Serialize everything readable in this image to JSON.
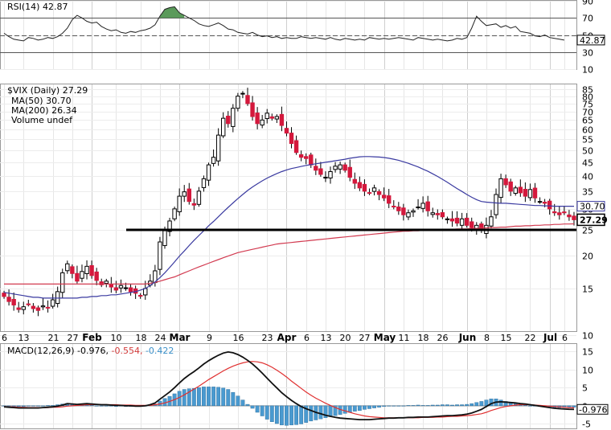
{
  "chart_data": [
    {
      "type": "line",
      "title": "RSI(14) 42.87",
      "ylim": [
        10,
        90
      ],
      "ticks": [
        "90",
        "70",
        "50",
        "30",
        "10"
      ],
      "guides": [
        30,
        50,
        70
      ],
      "last_value_label": "42.87",
      "series": [
        {
          "name": "RSI(14)",
          "values": [
            52,
            48,
            45,
            44,
            43,
            47,
            46,
            44,
            45,
            47,
            46,
            48,
            52,
            58,
            68,
            73,
            70,
            66,
            64,
            65,
            60,
            57,
            55,
            56,
            53,
            52,
            54,
            53,
            55,
            56,
            58,
            62,
            72,
            80,
            82,
            83,
            76,
            73,
            70,
            67,
            63,
            61,
            60,
            62,
            64,
            61,
            57,
            56,
            53,
            52,
            51,
            53,
            50,
            48,
            49,
            47,
            48,
            46,
            47,
            46,
            46,
            48,
            47,
            46,
            47,
            46,
            45,
            47,
            45,
            44,
            46,
            45,
            44,
            45,
            44,
            47,
            46,
            45,
            46,
            45,
            46,
            47,
            46,
            45,
            44,
            47,
            46,
            45,
            44,
            45,
            44,
            43,
            44,
            46,
            45,
            47,
            58,
            72,
            66,
            61,
            62,
            63,
            59,
            61,
            58,
            60,
            54,
            53,
            52,
            49,
            48,
            50,
            47,
            46,
            45,
            44
          ]
        }
      ]
    },
    {
      "type": "candlestick",
      "title": "$VIX (Daily) 27.29",
      "scale": "log",
      "ylim": [
        10.5,
        88
      ],
      "ticks": [
        "85",
        "80",
        "75",
        "70",
        "65",
        "60",
        "55",
        "50",
        "45",
        "40",
        "35",
        "30",
        "25",
        "20",
        "15",
        "10"
      ],
      "x_ticks": [
        "6",
        "13",
        "21",
        "27",
        "Feb",
        "10",
        "18",
        "24",
        "Mar",
        "9",
        "16",
        "23",
        "Apr",
        "6",
        "13",
        "20",
        "27",
        "May",
        "11",
        "18",
        "26",
        "Jun",
        "8",
        "15",
        "22",
        "Jul",
        "6"
      ],
      "legend": [
        {
          "label": "$VIX (Daily) 27.29",
          "color": "#000000"
        },
        {
          "label": "MA(50) 30.70",
          "color": "#3a3aa0"
        },
        {
          "label": "MA(200) 26.34",
          "color": "#d23a50"
        },
        {
          "label": "Volume undef",
          "color": "#777777"
        }
      ],
      "last_value_label": "27.29",
      "ma50_label": "30.70",
      "support_level": 25,
      "close": [
        14.0,
        13.4,
        13.0,
        12.5,
        12.8,
        13.1,
        12.6,
        12.4,
        12.9,
        12.7,
        13.6,
        14.6,
        17.2,
        18.6,
        17.1,
        16.0,
        17.4,
        18.2,
        16.8,
        16.1,
        15.5,
        16.0,
        15.2,
        14.8,
        15.4,
        15.1,
        14.6,
        14.4,
        14.1,
        15.0,
        16.0,
        17.5,
        22.5,
        24.8,
        27.0,
        30.0,
        33.5,
        34.8,
        32.0,
        31.0,
        35.0,
        39.0,
        44.0,
        47.0,
        57.0,
        66.0,
        63.0,
        72.0,
        80.0,
        82.0,
        75.0,
        67.0,
        63.0,
        65.0,
        69.0,
        66.0,
        67.0,
        62.0,
        58.0,
        53.0,
        49.0,
        47.0,
        46.5,
        44.0,
        42.0,
        40.5,
        39.5,
        41.5,
        43.5,
        44.0,
        42.0,
        39.5,
        37.5,
        36.0,
        35.0,
        34.5,
        36.0,
        34.0,
        33.0,
        31.5,
        30.5,
        29.5,
        28.5,
        29.0,
        29.5,
        30.5,
        31.5,
        29.5,
        29.0,
        28.5,
        28.0,
        27.5,
        27.0,
        26.5,
        27.5,
        26.0,
        25.5,
        26.0,
        25.0,
        26.0,
        28.0,
        34.0,
        39.0,
        37.0,
        35.0,
        36.0,
        34.5,
        33.5,
        35.5,
        33.0,
        32.0,
        31.5,
        30.0,
        29.0,
        28.5,
        29.0,
        28.0,
        27.29
      ],
      "ma50": [
        14.5,
        14.4,
        14.3,
        14.2,
        14.1,
        14.0,
        13.9,
        13.9,
        13.8,
        13.8,
        13.8,
        13.8,
        13.8,
        13.8,
        13.8,
        13.8,
        13.9,
        13.9,
        14.0,
        14.0,
        14.1,
        14.1,
        14.2,
        14.2,
        14.3,
        14.4,
        14.5,
        14.6,
        14.8,
        15.0,
        15.4,
        15.9,
        16.5,
        17.2,
        18.0,
        18.9,
        19.9,
        20.8,
        21.8,
        22.8,
        23.8,
        24.8,
        25.9,
        26.9,
        28.0,
        29.2,
        30.4,
        31.6,
        32.8,
        34.0,
        35.2,
        36.3,
        37.3,
        38.3,
        39.2,
        40.0,
        40.8,
        41.5,
        42.1,
        42.6,
        43.0,
        43.4,
        43.8,
        44.1,
        44.4,
        44.7,
        45.0,
        45.3,
        45.6,
        45.9,
        46.2,
        46.6,
        46.9,
        47.2,
        47.3,
        47.3,
        47.2,
        47.1,
        46.9,
        46.6,
        46.2,
        45.8,
        45.2,
        44.6,
        43.9,
        43.2,
        42.4,
        41.6,
        40.7,
        39.8,
        38.8,
        37.8,
        36.8,
        35.8,
        34.9,
        34.0,
        33.2,
        32.5,
        32.0,
        31.8,
        31.7,
        31.6,
        31.5,
        31.5,
        31.4,
        31.3,
        31.2,
        31.1,
        31.0,
        30.9,
        30.9,
        30.8,
        30.8,
        30.7,
        30.7,
        30.7,
        30.7,
        30.7
      ],
      "ma200": [
        15.6,
        15.6,
        15.6,
        15.6,
        15.6,
        15.6,
        15.6,
        15.6,
        15.6,
        15.6,
        15.6,
        15.6,
        15.6,
        15.6,
        15.6,
        15.6,
        15.6,
        15.6,
        15.6,
        15.6,
        15.6,
        15.6,
        15.6,
        15.6,
        15.6,
        15.6,
        15.6,
        15.6,
        15.6,
        15.6,
        15.7,
        15.8,
        16.0,
        16.2,
        16.4,
        16.6,
        16.9,
        17.2,
        17.5,
        17.8,
        18.1,
        18.4,
        18.7,
        19.0,
        19.3,
        19.6,
        19.9,
        20.2,
        20.5,
        20.7,
        20.9,
        21.1,
        21.3,
        21.5,
        21.7,
        21.9,
        22.1,
        22.2,
        22.3,
        22.4,
        22.5,
        22.6,
        22.7,
        22.8,
        22.9,
        23.0,
        23.1,
        23.2,
        23.3,
        23.4,
        23.5,
        23.6,
        23.7,
        23.8,
        23.9,
        24.0,
        24.1,
        24.2,
        24.3,
        24.4,
        24.5,
        24.6,
        24.7,
        24.7,
        24.8,
        24.8,
        24.9,
        24.9,
        25.0,
        25.0,
        25.1,
        25.1,
        25.1,
        25.2,
        25.2,
        25.2,
        25.3,
        25.3,
        25.4,
        25.4,
        25.5,
        25.5,
        25.6,
        25.6,
        25.7,
        25.8,
        25.8,
        25.9,
        25.9,
        26.0,
        26.0,
        26.1,
        26.1,
        26.2,
        26.2,
        26.3,
        26.3,
        26.34
      ]
    },
    {
      "type": "line+bar",
      "title": "MACD(12,26,9)",
      "legend": [
        {
          "label": "MACD(12,26,9) -0.976, ",
          "color": "#000000"
        },
        {
          "label": "-0.554, ",
          "color": "#d23a3a"
        },
        {
          "label": "-0.422",
          "color": "#3a8fc8"
        }
      ],
      "ylim": [
        -6,
        17
      ],
      "ticks": [
        "15",
        "10",
        "5",
        "0",
        "-5"
      ],
      "last_value_label": "-0.976",
      "series": [
        {
          "name": "MACD",
          "values": [
            -0.3,
            -0.4,
            -0.5,
            -0.6,
            -0.6,
            -0.6,
            -0.6,
            -0.6,
            -0.5,
            -0.4,
            -0.3,
            -0.1,
            0.2,
            0.6,
            0.5,
            0.4,
            0.5,
            0.6,
            0.5,
            0.4,
            0.3,
            0.3,
            0.2,
            0.1,
            0.1,
            0.0,
            0.0,
            -0.1,
            -0.1,
            0.0,
            0.3,
            0.8,
            1.8,
            2.8,
            3.8,
            5.0,
            6.3,
            7.5,
            8.5,
            9.4,
            10.4,
            11.5,
            12.4,
            13.2,
            13.9,
            14.5,
            14.8,
            14.6,
            14.1,
            13.4,
            12.5,
            11.5,
            10.3,
            9.0,
            7.6,
            6.2,
            4.9,
            3.6,
            2.5,
            1.5,
            0.6,
            -0.2,
            -0.8,
            -1.3,
            -1.8,
            -2.2,
            -2.6,
            -2.9,
            -3.2,
            -3.4,
            -3.5,
            -3.6,
            -3.7,
            -3.8,
            -3.8,
            -3.8,
            -3.7,
            -3.6,
            -3.5,
            -3.4,
            -3.4,
            -3.3,
            -3.3,
            -3.2,
            -3.2,
            -3.1,
            -3.1,
            -3.1,
            -3.0,
            -2.9,
            -2.8,
            -2.7,
            -2.7,
            -2.6,
            -2.5,
            -2.3,
            -2.0,
            -1.5,
            -1.0,
            -0.2,
            0.6,
            1.0,
            1.1,
            1.0,
            0.9,
            0.8,
            0.6,
            0.5,
            0.3,
            0.1,
            -0.1,
            -0.3,
            -0.5,
            -0.7,
            -0.8,
            -0.9,
            -0.95,
            -0.976
          ]
        },
        {
          "name": "Signal",
          "values": [
            -0.2,
            -0.3,
            -0.3,
            -0.4,
            -0.4,
            -0.5,
            -0.5,
            -0.5,
            -0.5,
            -0.5,
            -0.4,
            -0.4,
            -0.3,
            -0.1,
            0.0,
            0.1,
            0.2,
            0.3,
            0.3,
            0.4,
            0.3,
            0.3,
            0.3,
            0.3,
            0.2,
            0.2,
            0.2,
            0.1,
            0.1,
            0.1,
            0.1,
            0.3,
            0.5,
            0.8,
            1.2,
            1.7,
            2.3,
            3.0,
            3.8,
            4.6,
            5.4,
            6.3,
            7.2,
            8.0,
            8.8,
            9.6,
            10.3,
            10.9,
            11.4,
            11.8,
            12.1,
            12.2,
            12.1,
            11.8,
            11.3,
            10.6,
            9.8,
            8.9,
            7.9,
            6.8,
            5.8,
            4.8,
            3.8,
            2.9,
            2.1,
            1.4,
            0.7,
            0.1,
            -0.5,
            -1.0,
            -1.4,
            -1.8,
            -2.2,
            -2.5,
            -2.8,
            -3.0,
            -3.1,
            -3.2,
            -3.3,
            -3.3,
            -3.3,
            -3.3,
            -3.3,
            -3.3,
            -3.3,
            -3.3,
            -3.2,
            -3.2,
            -3.2,
            -3.1,
            -3.1,
            -3.0,
            -2.9,
            -2.9,
            -2.8,
            -2.7,
            -2.6,
            -2.4,
            -2.2,
            -1.8,
            -1.3,
            -0.9,
            -0.5,
            -0.2,
            0.0,
            0.2,
            0.3,
            0.3,
            0.3,
            0.2,
            0.1,
            0.0,
            -0.1,
            -0.2,
            -0.3,
            -0.4,
            -0.5,
            -0.554
          ]
        }
      ]
    }
  ]
}
